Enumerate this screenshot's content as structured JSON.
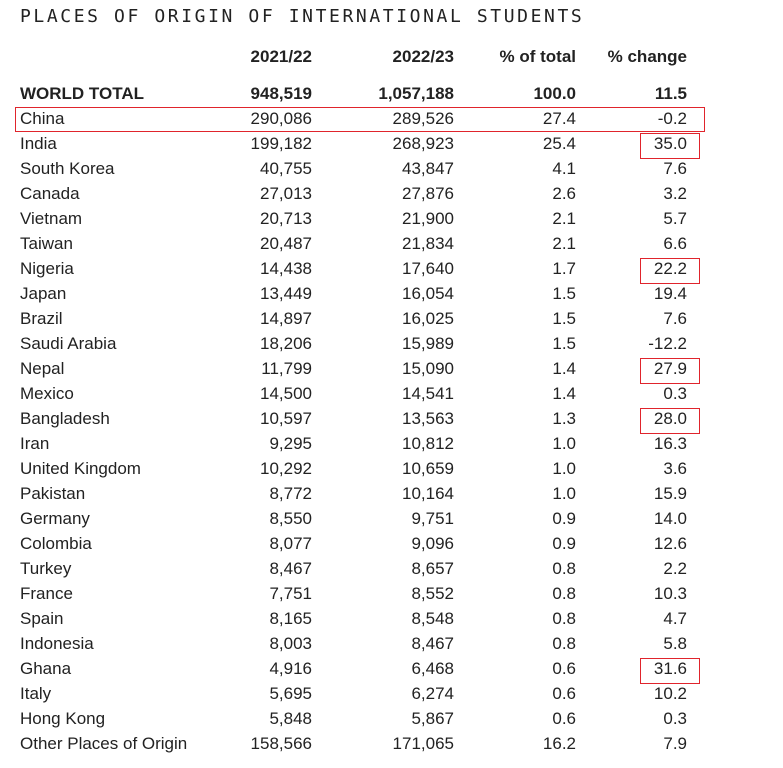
{
  "chart_data": {
    "type": "table",
    "title": "PLACES OF ORIGIN OF INTERNATIONAL STUDENTS",
    "columns": [
      "",
      "2021/22",
      "2022/23",
      "% of total",
      "% change"
    ],
    "rows": [
      {
        "place": "WORLD TOTAL",
        "y2021_22": "948,519",
        "y2022_23": "1,057,188",
        "pct_total": "100.0",
        "pct_change": "11.5"
      },
      {
        "place": "China",
        "y2021_22": "290,086",
        "y2022_23": "289,526",
        "pct_total": "27.4",
        "pct_change": "-0.2"
      },
      {
        "place": "India",
        "y2021_22": "199,182",
        "y2022_23": "268,923",
        "pct_total": "25.4",
        "pct_change": "35.0"
      },
      {
        "place": "South Korea",
        "y2021_22": "40,755",
        "y2022_23": "43,847",
        "pct_total": "4.1",
        "pct_change": "7.6"
      },
      {
        "place": "Canada",
        "y2021_22": "27,013",
        "y2022_23": "27,876",
        "pct_total": "2.6",
        "pct_change": "3.2"
      },
      {
        "place": "Vietnam",
        "y2021_22": "20,713",
        "y2022_23": "21,900",
        "pct_total": "2.1",
        "pct_change": "5.7"
      },
      {
        "place": "Taiwan",
        "y2021_22": "20,487",
        "y2022_23": "21,834",
        "pct_total": "2.1",
        "pct_change": "6.6"
      },
      {
        "place": "Nigeria",
        "y2021_22": "14,438",
        "y2022_23": "17,640",
        "pct_total": "1.7",
        "pct_change": "22.2"
      },
      {
        "place": "Japan",
        "y2021_22": "13,449",
        "y2022_23": "16,054",
        "pct_total": "1.5",
        "pct_change": "19.4"
      },
      {
        "place": "Brazil",
        "y2021_22": "14,897",
        "y2022_23": "16,025",
        "pct_total": "1.5",
        "pct_change": "7.6"
      },
      {
        "place": "Saudi Arabia",
        "y2021_22": "18,206",
        "y2022_23": "15,989",
        "pct_total": "1.5",
        "pct_change": "-12.2"
      },
      {
        "place": "Nepal",
        "y2021_22": "11,799",
        "y2022_23": "15,090",
        "pct_total": "1.4",
        "pct_change": "27.9"
      },
      {
        "place": "Mexico",
        "y2021_22": "14,500",
        "y2022_23": "14,541",
        "pct_total": "1.4",
        "pct_change": "0.3"
      },
      {
        "place": "Bangladesh",
        "y2021_22": "10,597",
        "y2022_23": "13,563",
        "pct_total": "1.3",
        "pct_change": "28.0"
      },
      {
        "place": "Iran",
        "y2021_22": "9,295",
        "y2022_23": "10,812",
        "pct_total": "1.0",
        "pct_change": "16.3"
      },
      {
        "place": "United Kingdom",
        "y2021_22": "10,292",
        "y2022_23": "10,659",
        "pct_total": "1.0",
        "pct_change": "3.6"
      },
      {
        "place": "Pakistan",
        "y2021_22": "8,772",
        "y2022_23": "10,164",
        "pct_total": "1.0",
        "pct_change": "15.9"
      },
      {
        "place": "Germany",
        "y2021_22": "8,550",
        "y2022_23": "9,751",
        "pct_total": "0.9",
        "pct_change": "14.0"
      },
      {
        "place": "Colombia",
        "y2021_22": "8,077",
        "y2022_23": "9,096",
        "pct_total": "0.9",
        "pct_change": "12.6"
      },
      {
        "place": "Turkey",
        "y2021_22": "8,467",
        "y2022_23": "8,657",
        "pct_total": "0.8",
        "pct_change": "2.2"
      },
      {
        "place": "France",
        "y2021_22": "7,751",
        "y2022_23": "8,552",
        "pct_total": "0.8",
        "pct_change": "10.3"
      },
      {
        "place": "Spain",
        "y2021_22": "8,165",
        "y2022_23": "8,548",
        "pct_total": "0.8",
        "pct_change": "4.7"
      },
      {
        "place": "Indonesia",
        "y2021_22": "8,003",
        "y2022_23": "8,467",
        "pct_total": "0.8",
        "pct_change": "5.8"
      },
      {
        "place": "Ghana",
        "y2021_22": "4,916",
        "y2022_23": "6,468",
        "pct_total": "0.6",
        "pct_change": "31.6"
      },
      {
        "place": "Italy",
        "y2021_22": "5,695",
        "y2022_23": "6,274",
        "pct_total": "0.6",
        "pct_change": "10.2"
      },
      {
        "place": "Hong Kong",
        "y2021_22": "5,848",
        "y2022_23": "5,867",
        "pct_total": "0.6",
        "pct_change": "0.3"
      },
      {
        "place": "Other Places of Origin",
        "y2021_22": "158,566",
        "y2022_23": "171,065",
        "pct_total": "16.2",
        "pct_change": "7.9"
      }
    ],
    "highlighted_rows": [
      "China"
    ],
    "highlighted_change_cells": [
      "India",
      "Nigeria",
      "Nepal",
      "Bangladesh",
      "Ghana"
    ],
    "highlight_color": "#e0242c",
    "text_color": "#222222"
  }
}
